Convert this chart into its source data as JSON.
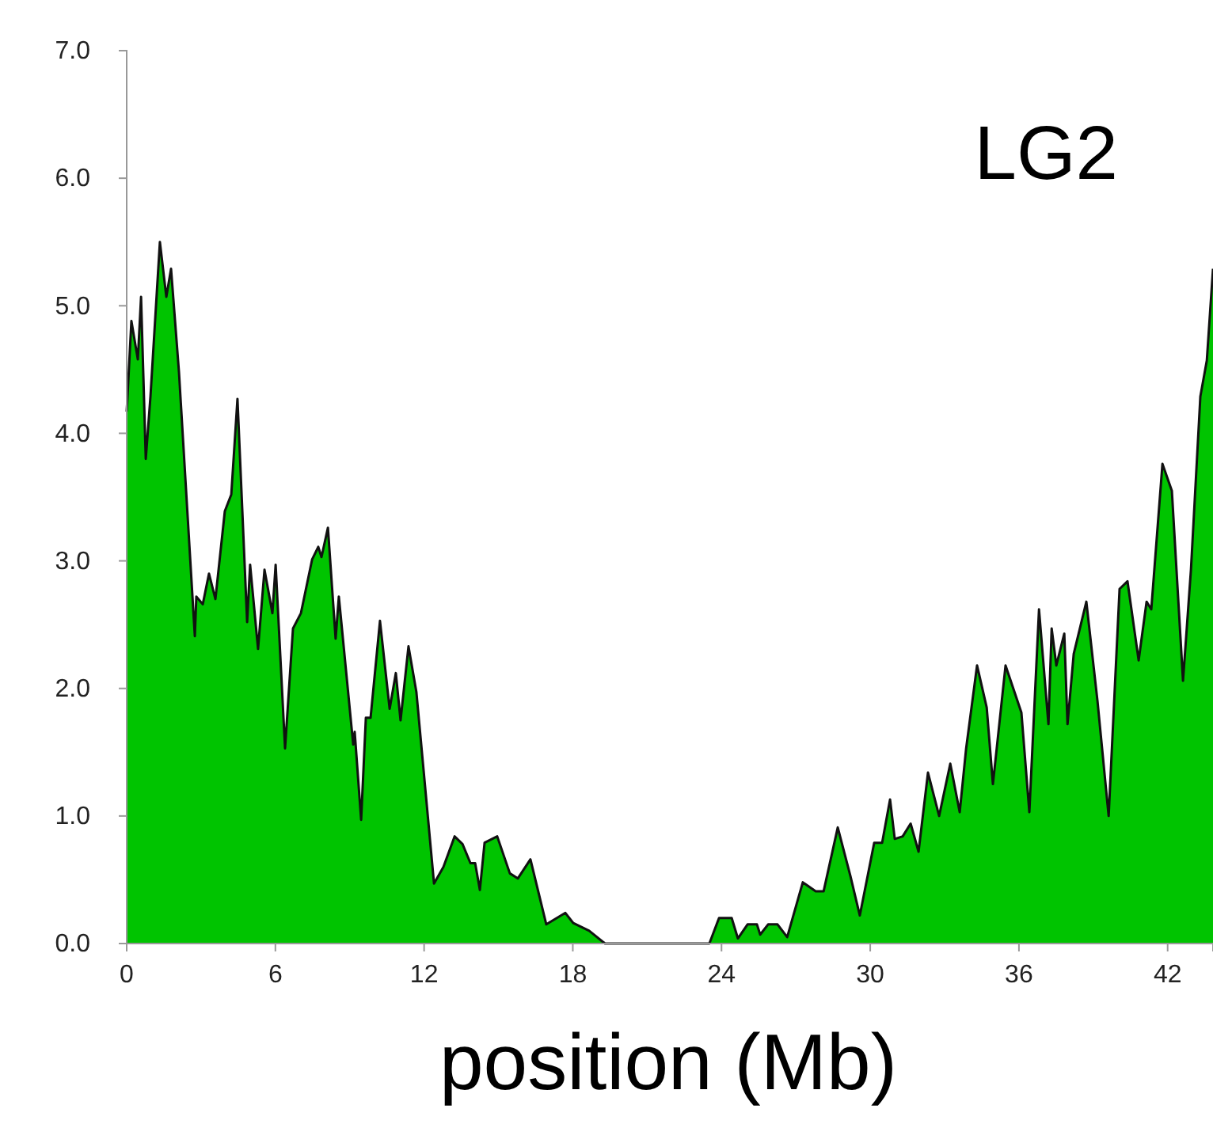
{
  "chart_data": {
    "type": "area",
    "xlabel": "position (Mb)",
    "annotations": [
      "LG2"
    ],
    "x": [
      0,
      0.19,
      0.45,
      0.58,
      0.77,
      0.96,
      1.34,
      1.6,
      1.79,
      2.11,
      2.75,
      2.81,
      3.07,
      3.32,
      3.58,
      3.96,
      4.22,
      4.47,
      4.86,
      4.98,
      5.3,
      5.56,
      5.88,
      6.01,
      6.39,
      6.71,
      7.03,
      7.48,
      7.73,
      7.86,
      8.12,
      8.43,
      8.56,
      9.14,
      9.2,
      9.46,
      9.65,
      9.84,
      10.22,
      10.61,
      10.86,
      11.05,
      11.37,
      11.69,
      12.4,
      12.78,
      13.23,
      13.55,
      13.87,
      14.06,
      14.25,
      14.44,
      14.95,
      15.46,
      15.78,
      16.29,
      16.93,
      17.7,
      18.02,
      18.66,
      19.3,
      23.51,
      23.9,
      24.41,
      24.66,
      25.05,
      25.43,
      25.56,
      25.88,
      26.26,
      26.65,
      27.28,
      27.8,
      28.12,
      28.69,
      29.2,
      29.58,
      30.16,
      30.48,
      30.8,
      30.99,
      31.31,
      31.63,
      31.95,
      32.33,
      32.78,
      33.23,
      33.61,
      33.87,
      34.31,
      34.7,
      34.95,
      35.46,
      36.1,
      36.42,
      36.81,
      37.19,
      37.32,
      37.51,
      37.83,
      37.96,
      38.21,
      38.72,
      39.17,
      39.62,
      40.06,
      40.38,
      40.83,
      41.15,
      41.34,
      41.79,
      42.17,
      42.62,
      42.94,
      43.32,
      43.58,
      43.83
    ],
    "series": [
      {
        "color": "#00c400",
        "values": [
          4.17,
          4.88,
          4.58,
          5.07,
          3.8,
          4.29,
          5.5,
          5.07,
          5.29,
          4.48,
          2.41,
          2.72,
          2.66,
          2.9,
          2.7,
          3.39,
          3.52,
          4.27,
          2.52,
          2.97,
          2.31,
          2.93,
          2.59,
          2.97,
          1.53,
          2.47,
          2.59,
          3.01,
          3.11,
          3.03,
          3.26,
          2.39,
          2.72,
          1.56,
          1.66,
          0.97,
          1.77,
          1.77,
          2.53,
          1.84,
          2.12,
          1.75,
          2.33,
          1.97,
          0.47,
          0.6,
          0.84,
          0.78,
          0.63,
          0.63,
          0.42,
          0.79,
          0.84,
          0.55,
          0.51,
          0.66,
          0.15,
          0.24,
          0.16,
          0.1,
          0,
          0,
          0.2,
          0.2,
          0.04,
          0.15,
          0.15,
          0.07,
          0.15,
          0.15,
          0.05,
          0.48,
          0.41,
          0.41,
          0.91,
          0.53,
          0.22,
          0.79,
          0.79,
          1.13,
          0.82,
          0.84,
          0.94,
          0.72,
          1.34,
          1,
          1.41,
          1.03,
          1.53,
          2.18,
          1.85,
          1.25,
          2.18,
          1.81,
          1.03,
          2.62,
          1.72,
          2.47,
          2.18,
          2.43,
          1.72,
          2.27,
          2.68,
          1.9,
          1,
          2.78,
          2.84,
          2.22,
          2.68,
          2.62,
          3.76,
          3.55,
          2.06,
          2.93,
          4.29,
          4.57,
          5.29
        ]
      }
    ],
    "xlim": [
      0,
      43.83
    ],
    "xticks": [
      0,
      6,
      12,
      18,
      24,
      30,
      36,
      42
    ],
    "ylim": [
      0,
      7
    ],
    "yticks": [
      {
        "value": 0,
        "label": "0.0"
      },
      {
        "value": 1,
        "label": "1.0"
      },
      {
        "value": 2,
        "label": "2.0"
      },
      {
        "value": 3,
        "label": "3.0"
      },
      {
        "value": 4,
        "label": "4.0"
      },
      {
        "value": 5,
        "label": "5.0"
      },
      {
        "value": 6,
        "label": "6.0"
      },
      {
        "value": 7,
        "label": "7.0"
      }
    ],
    "grid": false
  }
}
